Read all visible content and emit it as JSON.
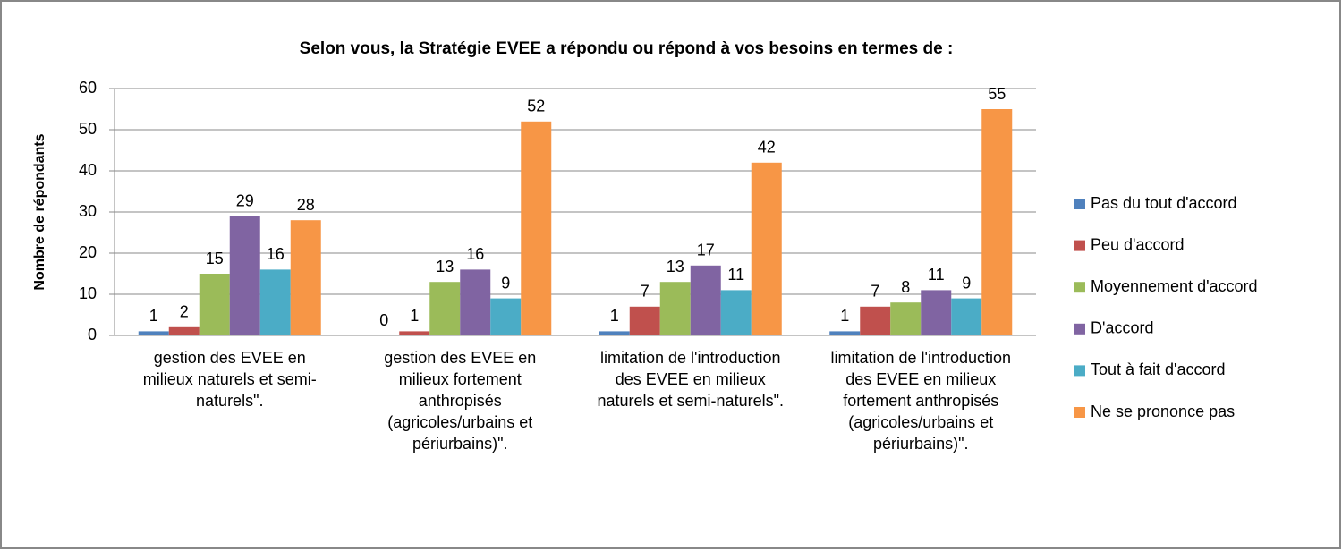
{
  "chart_data": {
    "type": "bar",
    "title": "Selon vous, la Stratégie EVEE a répondu ou répond à vos besoins en termes de :",
    "ylabel": "Nombre de répondants",
    "categories": [
      "gestion des EVEE en milieux naturels et semi-naturels\".",
      "gestion des EVEE en milieux fortement anthropisés (agricoles/urbains et périurbains)\".",
      "limitation de l'introduction des EVEE en milieux naturels et semi-naturels\".",
      "limitation de l'introduction des EVEE en milieux fortement anthropisés (agricoles/urbains et périurbains)\"."
    ],
    "series": [
      {
        "name": "Pas du tout d'accord",
        "color": "#4f81bd",
        "values": [
          1,
          0,
          1,
          1
        ]
      },
      {
        "name": "Peu d'accord",
        "color": "#c0504d",
        "values": [
          2,
          1,
          7,
          7
        ]
      },
      {
        "name": "Moyennement d'accord",
        "color": "#9bbb59",
        "values": [
          15,
          13,
          13,
          8
        ]
      },
      {
        "name": "D'accord",
        "color": "#8064a2",
        "values": [
          29,
          16,
          17,
          11
        ]
      },
      {
        "name": "Tout à fait d'accord",
        "color": "#4bacc6",
        "values": [
          16,
          9,
          11,
          9
        ]
      },
      {
        "name": "Ne se prononce pas",
        "color": "#f79646",
        "values": [
          28,
          52,
          42,
          55
        ]
      }
    ],
    "ylim": [
      0,
      60
    ],
    "yticks": [
      0,
      10,
      20,
      30,
      40,
      50,
      60
    ],
    "grid": true,
    "legend": "right"
  }
}
